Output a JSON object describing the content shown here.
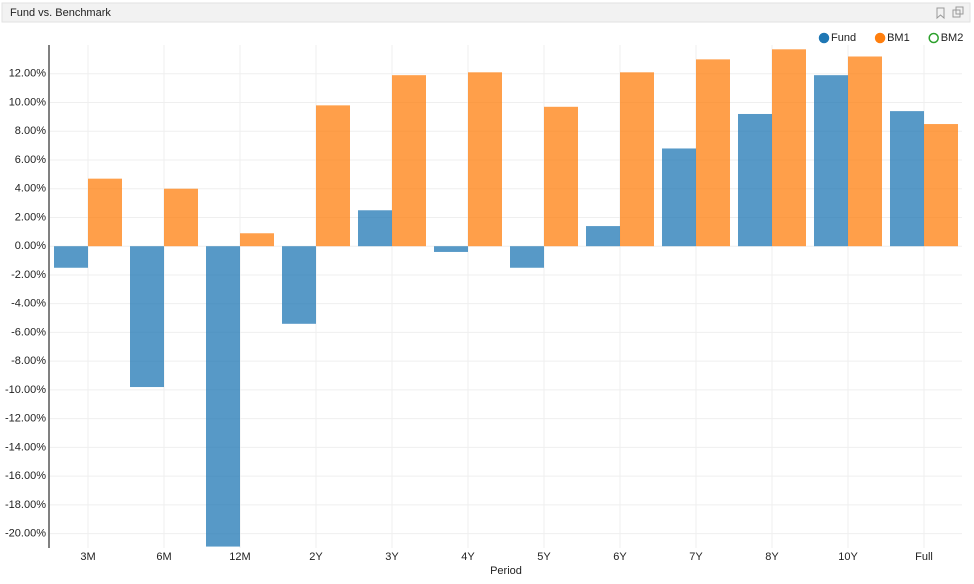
{
  "chart_data": {
    "type": "bar",
    "title": "Fund vs. Benchmark",
    "x_label": "Period",
    "categories": [
      "3M",
      "6M",
      "12M",
      "2Y",
      "3Y",
      "4Y",
      "5Y",
      "6Y",
      "7Y",
      "8Y",
      "10Y",
      "Full"
    ],
    "series": [
      {
        "name": "Fund",
        "color": "#1f77b4",
        "values": [
          -1.5,
          -9.8,
          -20.9,
          -5.4,
          2.5,
          -0.4,
          -1.5,
          1.4,
          6.8,
          9.2,
          11.9,
          9.4
        ]
      },
      {
        "name": "BM1",
        "color": "#ff7f0e",
        "values": [
          4.7,
          4.0,
          0.9,
          9.8,
          11.9,
          12.1,
          9.7,
          12.1,
          13.0,
          13.7,
          13.2,
          8.5
        ]
      },
      {
        "name": "BM2",
        "color": "#2ca02c",
        "values": [
          null,
          null,
          null,
          null,
          null,
          null,
          null,
          null,
          null,
          null,
          null,
          null
        ]
      }
    ],
    "ylim": [
      -21,
      14
    ],
    "yticks": [
      {
        "value": -20,
        "label": "-20.00%"
      },
      {
        "value": -18,
        "label": "-18.00%"
      },
      {
        "value": -16,
        "label": "-16.00%"
      },
      {
        "value": -14,
        "label": "-14.00%"
      },
      {
        "value": -12,
        "label": "-12.00%"
      },
      {
        "value": -10,
        "label": "-10.00%"
      },
      {
        "value": -8,
        "label": "-8.00%"
      },
      {
        "value": -6,
        "label": "-6.00%"
      },
      {
        "value": -4,
        "label": "-4.00%"
      },
      {
        "value": -2,
        "label": "-2.00%"
      },
      {
        "value": 0,
        "label": "0.00%"
      },
      {
        "value": 2,
        "label": "2.00%"
      },
      {
        "value": 4,
        "label": "4.00%"
      },
      {
        "value": 6,
        "label": "6.00%"
      },
      {
        "value": 8,
        "label": "8.00%"
      },
      {
        "value": 10,
        "label": "10.00%"
      },
      {
        "value": 12,
        "label": "12.00%"
      }
    ],
    "grid": true,
    "legend": "top-right"
  }
}
